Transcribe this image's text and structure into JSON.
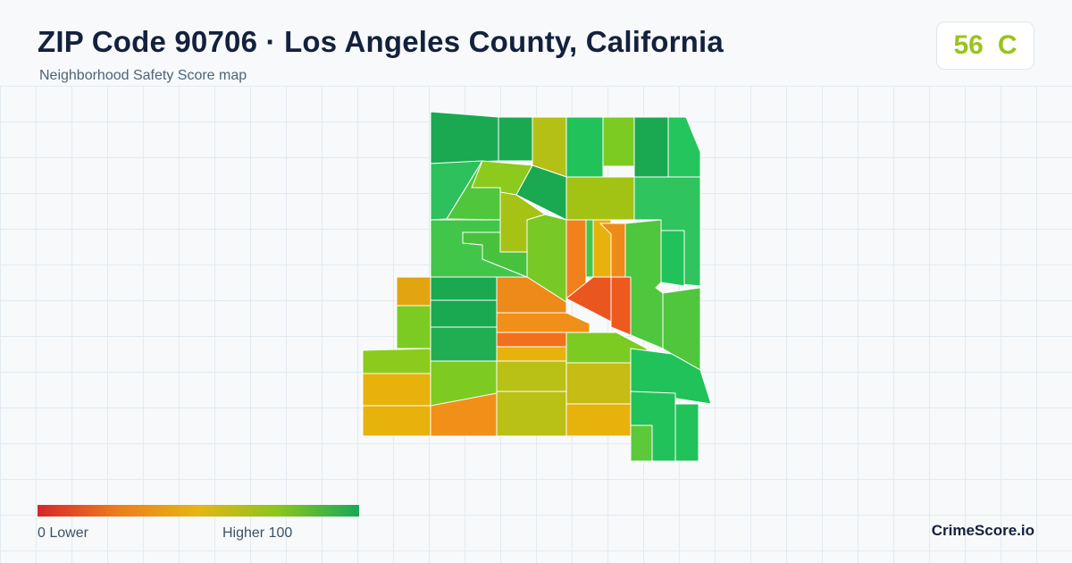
{
  "header": {
    "title": "ZIP Code 90706 · Los Angeles County, California",
    "subtitle": "Neighborhood Safety Score map"
  },
  "score": {
    "value": "56",
    "grade": "C",
    "color": "#9ac31a"
  },
  "legend": {
    "low": "0  Lower",
    "high": "Higher  100"
  },
  "brand": "CrimeScore.io",
  "regions": [
    {
      "fill": "#1aa851"
    },
    {
      "fill": "#1aa851"
    },
    {
      "fill": "#b5c017"
    },
    {
      "fill": "#22c25a"
    },
    {
      "fill": "#7ccb23"
    },
    {
      "fill": "#1aa851"
    },
    {
      "fill": "#25c55e"
    },
    {
      "fill": "#2dc05c"
    },
    {
      "fill": "#8ccb1d"
    },
    {
      "fill": "#1aa851"
    },
    {
      "fill": "#a2c314"
    },
    {
      "fill": "#2fc45d"
    },
    {
      "fill": "#4fc63c"
    },
    {
      "fill": "#a6c214"
    },
    {
      "fill": "#42c64a"
    },
    {
      "fill": "#78c926"
    },
    {
      "fill": "#e2a411"
    },
    {
      "fill": "#ee8a1a"
    },
    {
      "fill": "#7ccb23"
    },
    {
      "fill": "#f1821b"
    },
    {
      "fill": "#48c13c"
    },
    {
      "fill": "#41c64a"
    },
    {
      "fill": "#1aa851"
    },
    {
      "fill": "#e8b20d"
    },
    {
      "fill": "#1aa851"
    },
    {
      "fill": "#ef8a19"
    },
    {
      "fill": "#ea561f"
    },
    {
      "fill": "#ee5a1e"
    },
    {
      "fill": "#4ec63e"
    },
    {
      "fill": "#22c25a"
    },
    {
      "fill": "#4fc63c"
    },
    {
      "fill": "#21ad52"
    },
    {
      "fill": "#f19018"
    },
    {
      "fill": "#f1701b"
    },
    {
      "fill": "#7ccb23"
    },
    {
      "fill": "#8ccb1d"
    },
    {
      "fill": "#e8b20d"
    },
    {
      "fill": "#e8b20d"
    },
    {
      "fill": "#7dcb22"
    },
    {
      "fill": "#b9c016"
    },
    {
      "fill": "#c6bc13"
    },
    {
      "fill": "#22c25a"
    },
    {
      "fill": "#e8b20d"
    },
    {
      "fill": "#f19018"
    },
    {
      "fill": "#b9c016"
    },
    {
      "fill": "#e8b20d"
    },
    {
      "fill": "#22c25a"
    },
    {
      "fill": "#22c25a"
    },
    {
      "fill": "#5bc93a"
    }
  ]
}
